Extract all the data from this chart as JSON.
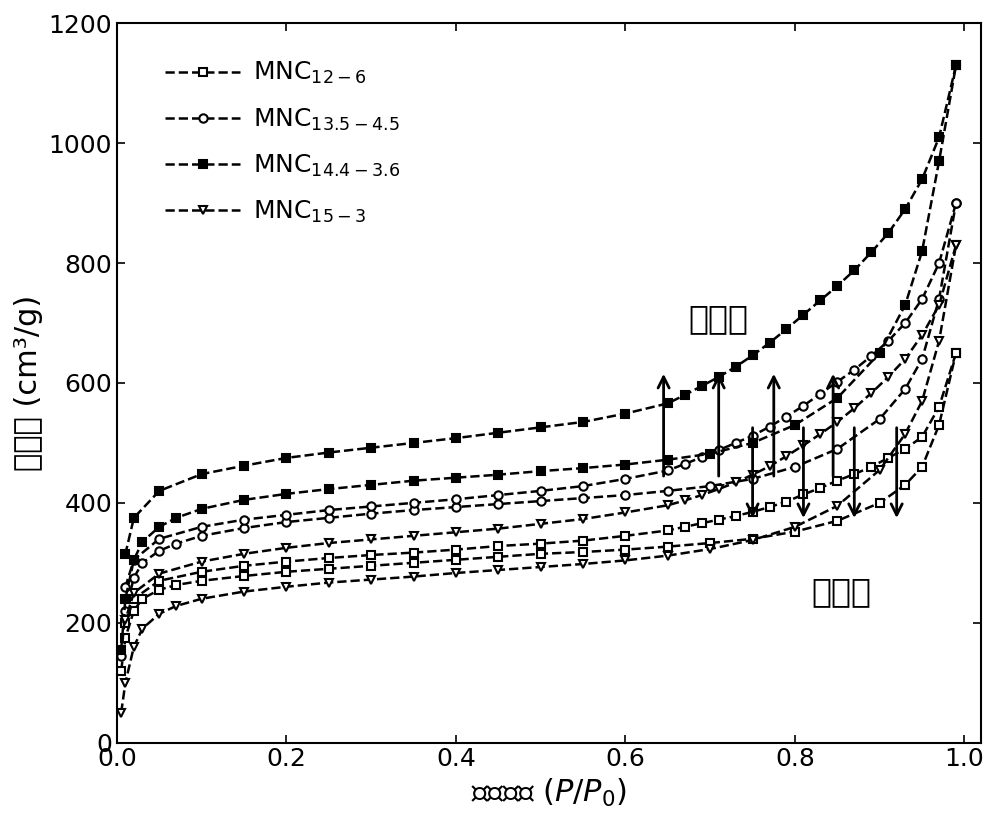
{
  "title": "",
  "xlabel": "相对压力 ($P/P_0$)",
  "ylabel": "吸附量 (cm³/g)",
  "xlim": [
    0.0,
    1.02
  ],
  "ylim": [
    0,
    1200
  ],
  "yticks": [
    0,
    200,
    400,
    600,
    800,
    1000,
    1200
  ],
  "xticks": [
    0.0,
    0.2,
    0.4,
    0.6,
    0.8,
    1.0
  ],
  "legend_labels": [
    "MNC$_{12-6}$",
    "MNC$_{13.5-4.5}$",
    "MNC$_{14.4-3.6}$",
    "MNC$_{15-3}$"
  ],
  "annotation_desorption": "脱附线",
  "annotation_adsorption": "吸附线",
  "background_color": "#ffffff",
  "line_color": "#000000",
  "font_size_labels": 22,
  "font_size_ticks": 18,
  "font_size_legend": 18,
  "font_size_annotation": 24,
  "mnc12_ads_x": [
    0.005,
    0.01,
    0.02,
    0.03,
    0.05,
    0.07,
    0.1,
    0.15,
    0.2,
    0.25,
    0.3,
    0.35,
    0.4,
    0.45,
    0.5,
    0.55,
    0.6,
    0.65,
    0.7,
    0.75,
    0.8,
    0.85,
    0.9,
    0.93,
    0.95,
    0.97,
    0.99
  ],
  "mnc12_ads_y": [
    120,
    175,
    220,
    240,
    255,
    263,
    270,
    278,
    285,
    290,
    295,
    300,
    305,
    310,
    315,
    318,
    322,
    327,
    333,
    340,
    352,
    370,
    400,
    430,
    460,
    530,
    650
  ],
  "mnc12_des_x": [
    0.99,
    0.97,
    0.95,
    0.93,
    0.91,
    0.89,
    0.87,
    0.85,
    0.83,
    0.81,
    0.79,
    0.77,
    0.75,
    0.73,
    0.71,
    0.69,
    0.67,
    0.65,
    0.6,
    0.55,
    0.5,
    0.45,
    0.4,
    0.35,
    0.3,
    0.25,
    0.2,
    0.15,
    0.1,
    0.05,
    0.02,
    0.01
  ],
  "mnc12_des_y": [
    650,
    560,
    510,
    490,
    475,
    460,
    448,
    437,
    425,
    414,
    402,
    393,
    385,
    378,
    372,
    366,
    360,
    354,
    345,
    337,
    332,
    328,
    322,
    317,
    313,
    308,
    302,
    295,
    285,
    270,
    240,
    200
  ],
  "mnc135_ads_x": [
    0.005,
    0.01,
    0.02,
    0.03,
    0.05,
    0.07,
    0.1,
    0.15,
    0.2,
    0.25,
    0.3,
    0.35,
    0.4,
    0.45,
    0.5,
    0.55,
    0.6,
    0.65,
    0.7,
    0.75,
    0.8,
    0.85,
    0.9,
    0.93,
    0.95,
    0.97,
    0.99
  ],
  "mnc135_ads_y": [
    145,
    220,
    275,
    300,
    320,
    332,
    345,
    358,
    368,
    375,
    382,
    388,
    393,
    398,
    403,
    408,
    413,
    420,
    428,
    440,
    460,
    490,
    540,
    590,
    640,
    740,
    900
  ],
  "mnc135_des_x": [
    0.99,
    0.97,
    0.95,
    0.93,
    0.91,
    0.89,
    0.87,
    0.85,
    0.83,
    0.81,
    0.79,
    0.77,
    0.75,
    0.73,
    0.71,
    0.69,
    0.67,
    0.65,
    0.6,
    0.55,
    0.5,
    0.45,
    0.4,
    0.35,
    0.3,
    0.25,
    0.2,
    0.15,
    0.1,
    0.05,
    0.02,
    0.01
  ],
  "mnc135_des_y": [
    900,
    800,
    740,
    700,
    670,
    645,
    622,
    602,
    582,
    562,
    544,
    527,
    512,
    500,
    488,
    476,
    465,
    454,
    440,
    428,
    420,
    413,
    406,
    400,
    394,
    388,
    380,
    372,
    360,
    340,
    305,
    260
  ],
  "mnc144_ads_x": [
    0.005,
    0.01,
    0.02,
    0.03,
    0.05,
    0.07,
    0.1,
    0.15,
    0.2,
    0.25,
    0.3,
    0.35,
    0.4,
    0.45,
    0.5,
    0.55,
    0.6,
    0.65,
    0.7,
    0.75,
    0.8,
    0.85,
    0.9,
    0.93,
    0.95,
    0.97,
    0.99
  ],
  "mnc144_ads_y": [
    155,
    240,
    305,
    335,
    360,
    375,
    390,
    405,
    415,
    423,
    430,
    437,
    442,
    447,
    453,
    458,
    464,
    472,
    482,
    500,
    530,
    575,
    650,
    730,
    820,
    970,
    1130
  ],
  "mnc144_des_x": [
    0.99,
    0.97,
    0.95,
    0.93,
    0.91,
    0.89,
    0.87,
    0.85,
    0.83,
    0.81,
    0.79,
    0.77,
    0.75,
    0.73,
    0.71,
    0.69,
    0.67,
    0.65,
    0.6,
    0.55,
    0.5,
    0.45,
    0.4,
    0.35,
    0.3,
    0.25,
    0.2,
    0.15,
    0.1,
    0.05,
    0.02,
    0.01
  ],
  "mnc144_des_y": [
    1130,
    1010,
    940,
    890,
    850,
    818,
    788,
    762,
    738,
    714,
    690,
    667,
    646,
    627,
    610,
    595,
    580,
    566,
    549,
    535,
    526,
    517,
    508,
    500,
    492,
    484,
    475,
    462,
    448,
    420,
    375,
    315
  ],
  "mnc153_ads_x": [
    0.005,
    0.01,
    0.02,
    0.03,
    0.05,
    0.07,
    0.1,
    0.15,
    0.2,
    0.25,
    0.3,
    0.35,
    0.4,
    0.45,
    0.5,
    0.55,
    0.6,
    0.65,
    0.7,
    0.75,
    0.8,
    0.85,
    0.9,
    0.93,
    0.95,
    0.97,
    0.99
  ],
  "mnc153_ads_y": [
    50,
    100,
    160,
    190,
    215,
    228,
    240,
    252,
    260,
    267,
    272,
    277,
    283,
    288,
    293,
    298,
    304,
    312,
    323,
    338,
    360,
    395,
    455,
    515,
    570,
    670,
    830
  ],
  "mnc153_des_x": [
    0.99,
    0.97,
    0.95,
    0.93,
    0.91,
    0.89,
    0.87,
    0.85,
    0.83,
    0.81,
    0.79,
    0.77,
    0.75,
    0.73,
    0.71,
    0.69,
    0.67,
    0.65,
    0.6,
    0.55,
    0.5,
    0.45,
    0.4,
    0.35,
    0.3,
    0.25,
    0.2,
    0.15,
    0.1,
    0.05,
    0.02,
    0.01
  ],
  "mnc153_des_y": [
    830,
    730,
    680,
    640,
    610,
    583,
    558,
    535,
    515,
    496,
    478,
    461,
    447,
    434,
    423,
    413,
    404,
    396,
    384,
    373,
    365,
    357,
    351,
    345,
    339,
    333,
    325,
    315,
    302,
    282,
    250,
    205
  ]
}
